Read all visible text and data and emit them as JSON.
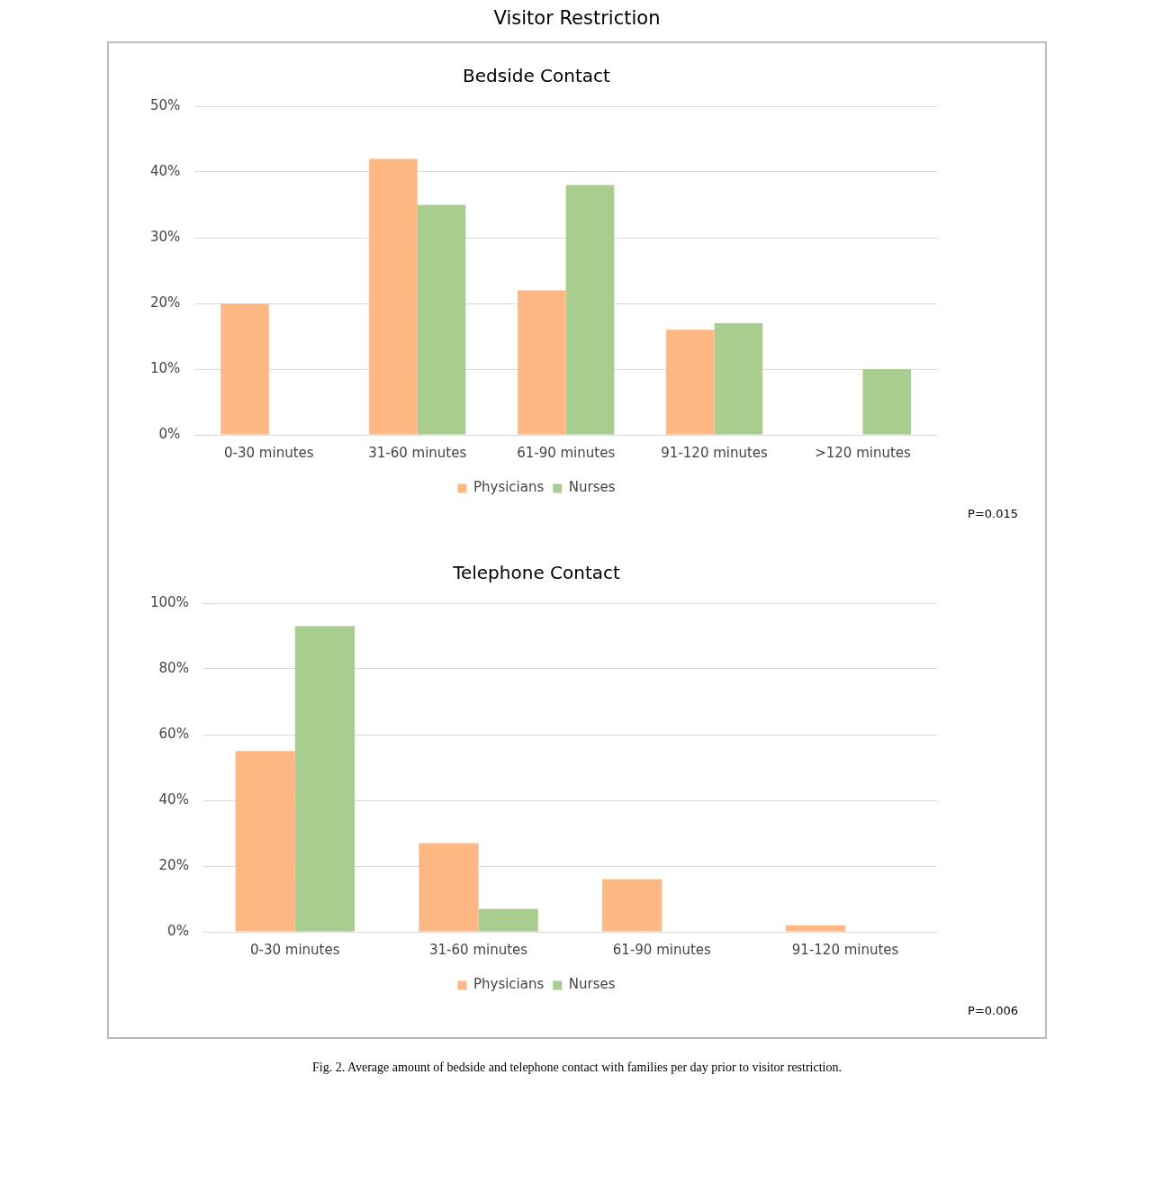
{
  "chart_data": [
    {
      "type": "bar",
      "title": "Visitor Restriction",
      "subtitle": "Bedside Contact",
      "categories": [
        "0-30 minutes",
        "31-60 minutes",
        "61-90 minutes",
        "91-120 minutes",
        ">120 minutes"
      ],
      "series": [
        {
          "name": "Physicians",
          "color": "#ffb784",
          "values": [
            20,
            42,
            22,
            16,
            0
          ]
        },
        {
          "name": "Nurses",
          "color": "#a9cc8f",
          "values": [
            0,
            35,
            38,
            17,
            10
          ]
        }
      ],
      "ylim": [
        0,
        50
      ],
      "yticks": [
        {
          "value": 0,
          "label": "0%"
        },
        {
          "value": 10,
          "label": "10%"
        },
        {
          "value": 20,
          "label": "20%"
        },
        {
          "value": 30,
          "label": "30%"
        },
        {
          "value": 40,
          "label": "40%"
        },
        {
          "value": 50,
          "label": "50%"
        }
      ],
      "grid": "y",
      "legend": "bottom",
      "annotations": [
        "P=0.015"
      ]
    },
    {
      "type": "bar",
      "title": "Telephone Contact",
      "categories": [
        "0-30 minutes",
        "31-60 minutes",
        "61-90 minutes",
        "91-120 minutes"
      ],
      "series": [
        {
          "name": "Physicians",
          "color": "#ffb784",
          "values": [
            55,
            27,
            16,
            2
          ]
        },
        {
          "name": "Nurses",
          "color": "#a9cc8f",
          "values": [
            93,
            7,
            0,
            0
          ]
        }
      ],
      "ylim": [
        0,
        100
      ],
      "yticks": [
        {
          "value": 0,
          "label": "0%"
        },
        {
          "value": 20,
          "label": "20%"
        },
        {
          "value": 40,
          "label": "40%"
        },
        {
          "value": 60,
          "label": "60%"
        },
        {
          "value": 80,
          "label": "80%"
        },
        {
          "value": 100,
          "label": "100%"
        }
      ],
      "grid": "y",
      "legend": "bottom",
      "annotations": [
        "P=0.006",
        "Fig. 2. Average amount of bedside and telephone contact with families per day prior to visitor restriction."
      ]
    }
  ]
}
